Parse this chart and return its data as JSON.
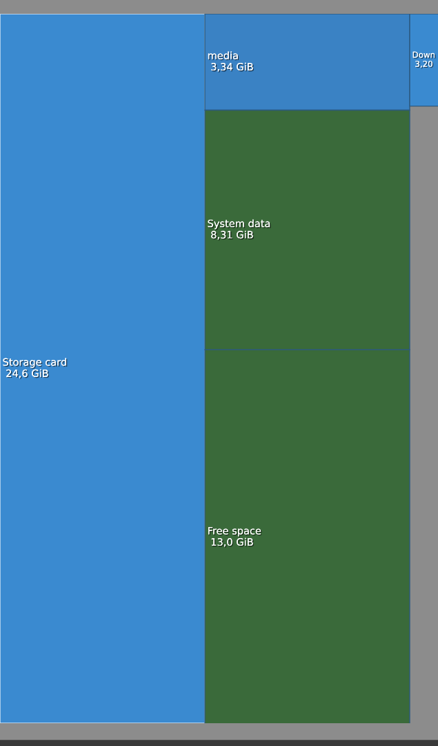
{
  "chart_data": {
    "type": "other",
    "categories": [
      "Storage card",
      "media",
      "System data",
      "Free space",
      "Down"
    ],
    "values": [
      24.6,
      3.34,
      8.31,
      13.0,
      3.2
    ],
    "value_labels": [
      "24,6 GiB",
      "3,34 GiB",
      "8,31 GiB",
      "13,0 GiB",
      "3,20"
    ],
    "colors": [
      "#3a8ad0",
      "#3a82c4",
      "#3a6a3a",
      "#3a6a3a",
      "#3a8ad0"
    ]
  }
}
